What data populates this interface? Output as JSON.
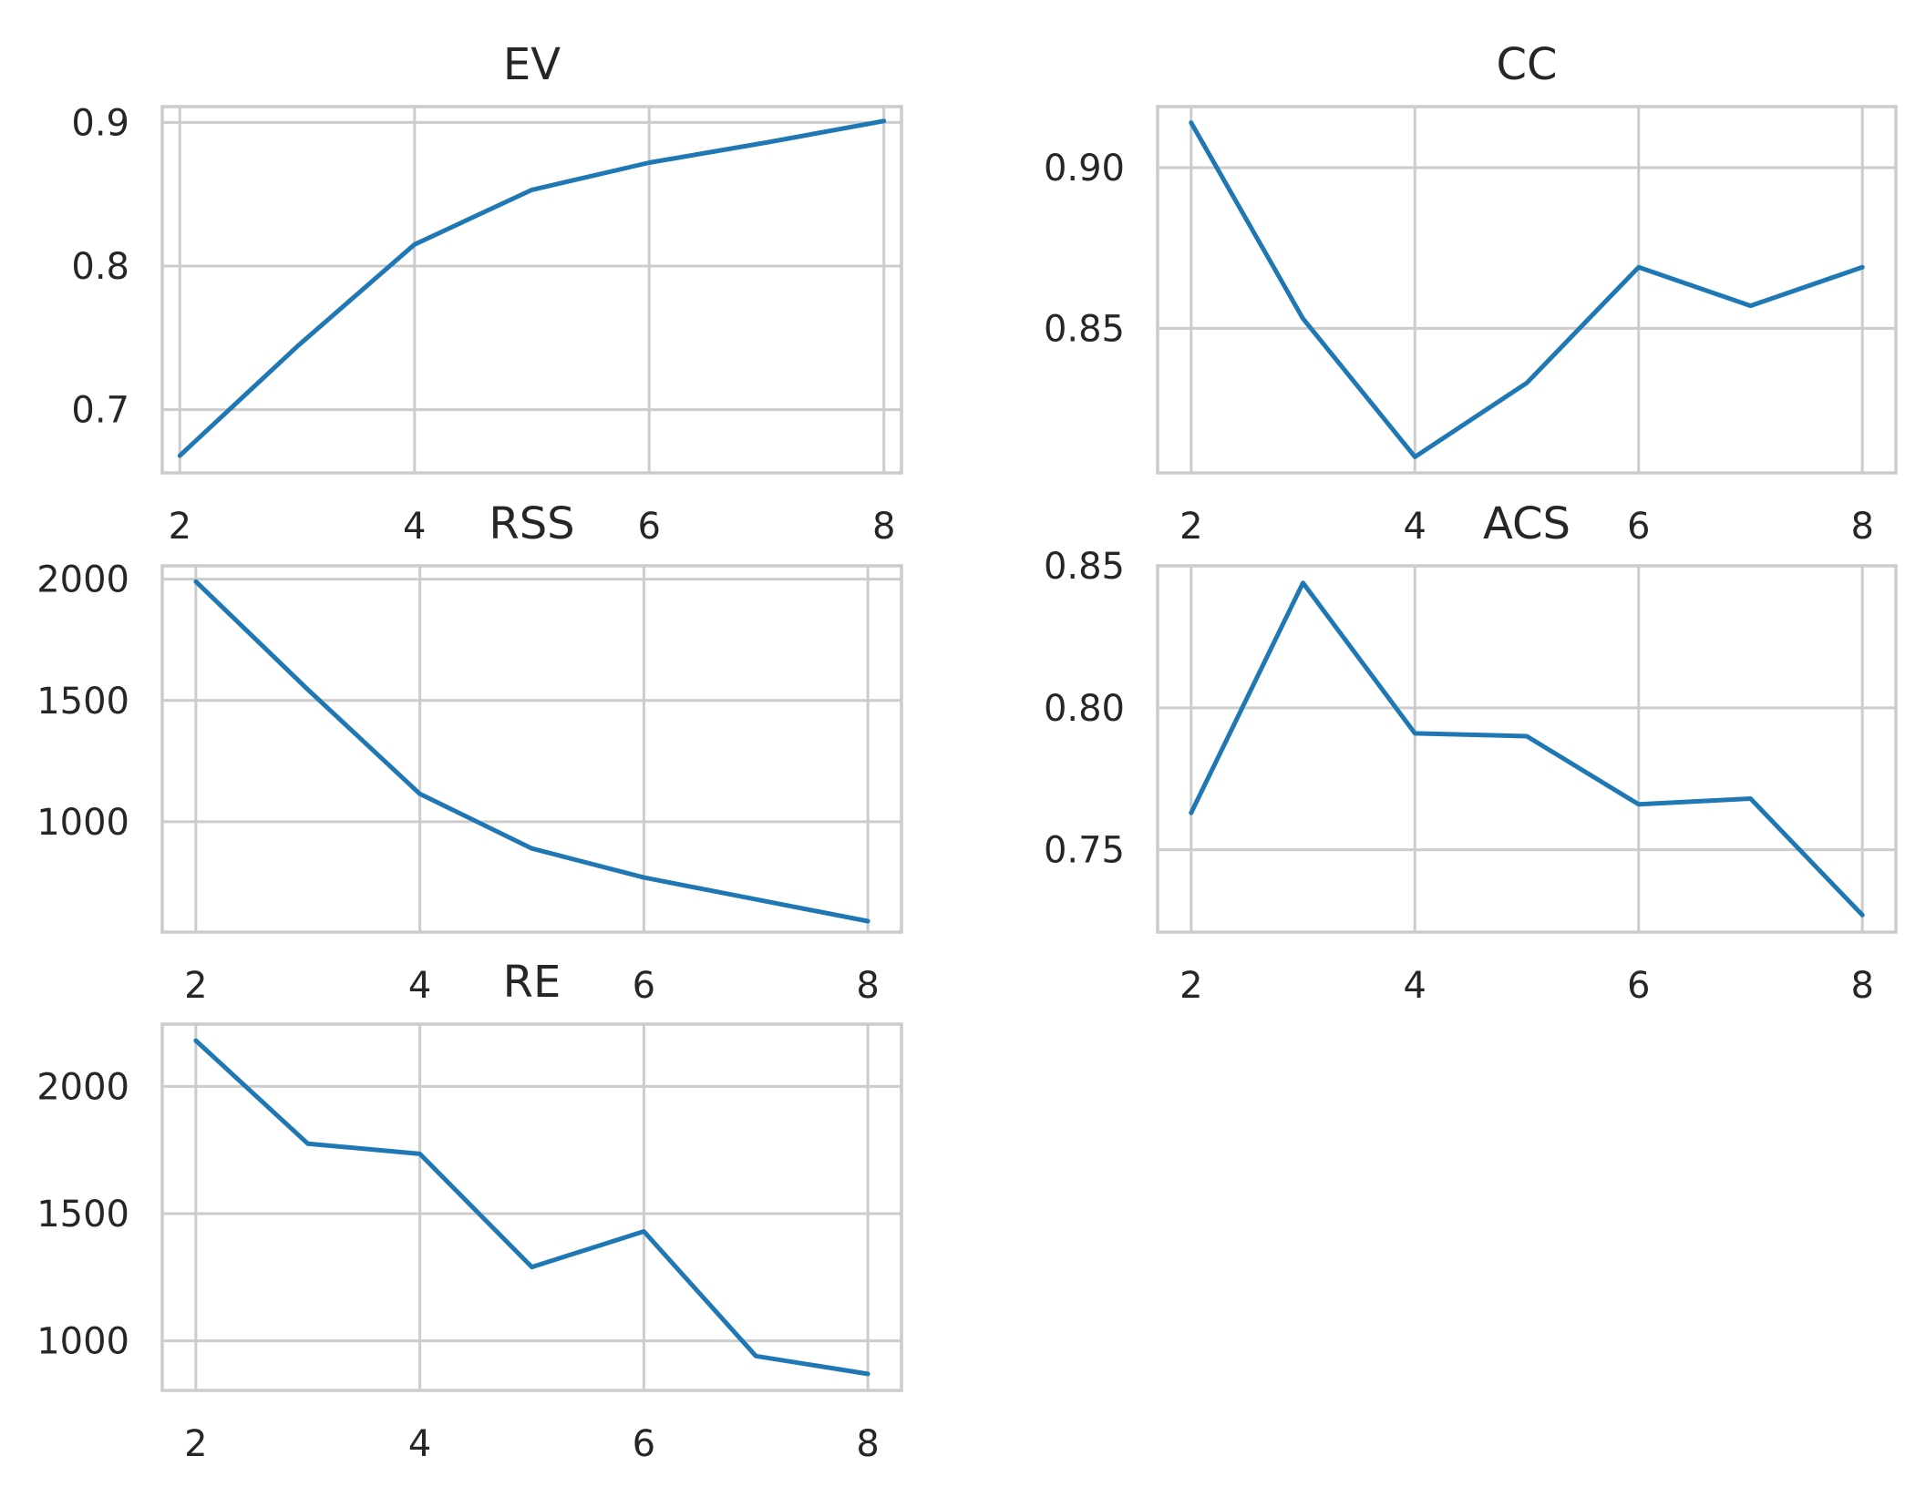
{
  "chart_data": [
    {
      "type": "line",
      "title": "EV",
      "x": [
        2,
        3,
        4,
        5,
        6,
        7,
        8
      ],
      "series": [
        {
          "values": [
            0.668,
            0.744,
            0.815,
            0.853,
            0.872,
            0.886,
            0.901
          ],
          "color": "#1f77b4"
        }
      ],
      "xlim": [
        1.85,
        8.15
      ],
      "ylim": [
        0.656,
        0.911
      ],
      "xticks": [
        2,
        4,
        6,
        8
      ],
      "yticks": [
        0.7,
        0.8,
        0.9
      ],
      "xtick_labels": [
        "2",
        "4",
        "6",
        "8"
      ],
      "ytick_labels": [
        "0.7",
        "0.8",
        "0.9"
      ],
      "grid": true
    },
    {
      "type": "line",
      "title": "CC",
      "x": [
        2,
        3,
        4,
        5,
        6,
        7,
        8
      ],
      "series": [
        {
          "values": [
            0.914,
            0.853,
            0.81,
            0.833,
            0.869,
            0.857,
            0.869
          ],
          "color": "#1f77b4"
        }
      ],
      "xlim": [
        1.7,
        8.3
      ],
      "ylim": [
        0.805,
        0.919
      ],
      "xticks": [
        2,
        4,
        6,
        8
      ],
      "yticks": [
        0.85,
        0.9
      ],
      "xtick_labels": [
        "2",
        "4",
        "6",
        "8"
      ],
      "ytick_labels": [
        "0.85",
        "0.90"
      ],
      "grid": true
    },
    {
      "type": "line",
      "title": "RSS",
      "x": [
        2,
        3,
        4,
        5,
        6,
        7,
        8
      ],
      "series": [
        {
          "values": [
            1990,
            1545,
            1115,
            890,
            770,
            680,
            590
          ],
          "color": "#1f77b4"
        }
      ],
      "xlim": [
        1.7,
        8.3
      ],
      "ylim": [
        545,
        2055
      ],
      "xticks": [
        2,
        4,
        6,
        8
      ],
      "yticks": [
        1000,
        1500,
        2000
      ],
      "xtick_labels": [
        "2",
        "4",
        "6",
        "8"
      ],
      "ytick_labels": [
        "1000",
        "1500",
        "2000"
      ],
      "grid": true
    },
    {
      "type": "line",
      "title": "ACS",
      "x": [
        2,
        3,
        4,
        5,
        6,
        7,
        8
      ],
      "series": [
        {
          "values": [
            0.763,
            0.844,
            0.791,
            0.79,
            0.766,
            0.768,
            0.727
          ],
          "color": "#1f77b4"
        }
      ],
      "xlim": [
        1.7,
        8.3
      ],
      "ylim": [
        0.721,
        0.85
      ],
      "xticks": [
        2,
        4,
        6,
        8
      ],
      "yticks": [
        0.75,
        0.8,
        0.85
      ],
      "xtick_labels": [
        "2",
        "4",
        "6",
        "8"
      ],
      "ytick_labels": [
        "0.75",
        "0.80",
        "0.85"
      ],
      "grid": true
    },
    {
      "type": "line",
      "title": "RE",
      "x": [
        2,
        3,
        4,
        5,
        6,
        7,
        8
      ],
      "series": [
        {
          "values": [
            2180,
            1775,
            1735,
            1290,
            1430,
            940,
            870
          ],
          "color": "#1f77b4"
        }
      ],
      "xlim": [
        1.7,
        8.3
      ],
      "ylim": [
        805,
        2245
      ],
      "xticks": [
        2,
        4,
        6,
        8
      ],
      "yticks": [
        1000,
        1500,
        2000
      ],
      "xtick_labels": [
        "2",
        "4",
        "6",
        "8"
      ],
      "ytick_labels": [
        "1000",
        "1500",
        "2000"
      ],
      "grid": true
    }
  ]
}
